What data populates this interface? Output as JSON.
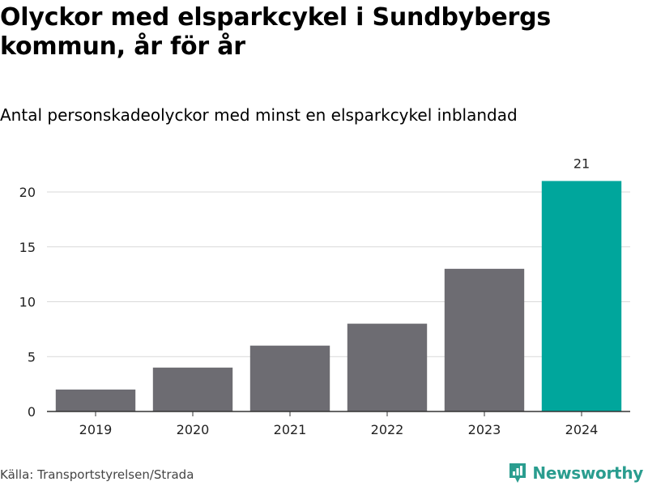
{
  "title": "Olyckor med elsparkcykel i Sundbybergs kommun, år för år",
  "subtitle": "Antal personskadeolyckor med minst en elsparkcykel inblandad",
  "source": "Källa: Transportstyrelsen/Strada",
  "brand": {
    "name": "Newsworthy",
    "icon": "newsworthy-logo-icon",
    "color": "#2a9d8f"
  },
  "chart_data": {
    "type": "bar",
    "categories": [
      "2019",
      "2020",
      "2021",
      "2022",
      "2023",
      "2024"
    ],
    "values": [
      2,
      4,
      6,
      8,
      13,
      21
    ],
    "highlight_index": 5,
    "data_labels": {
      "5": "21"
    },
    "yticks": [
      0,
      5,
      10,
      15,
      20
    ],
    "ylim": [
      0,
      22.5
    ],
    "grid": true,
    "colors": {
      "bar": "#6d6c72",
      "highlight": "#00a69c",
      "grid": "#d9d9d9",
      "axis": "#333333"
    }
  }
}
